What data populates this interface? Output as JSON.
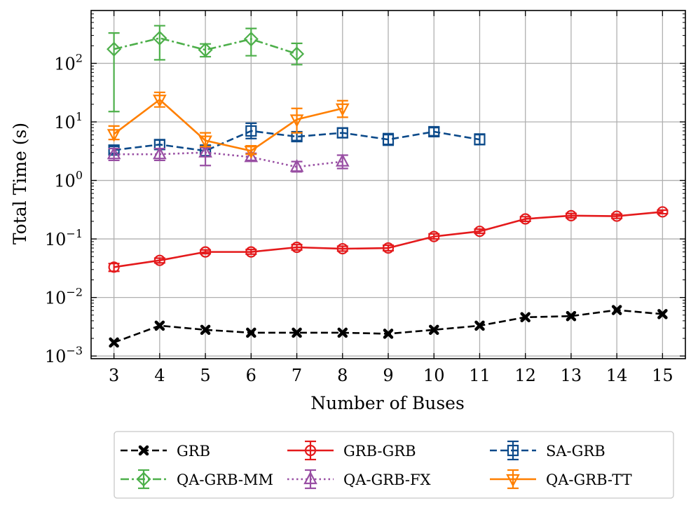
{
  "chart_data": {
    "type": "line",
    "xlabel": "Number of Buses",
    "ylabel": "Total Time (s)",
    "yscale": "log",
    "ylim": [
      0.0009,
      800
    ],
    "xlim": [
      2.5,
      15.5
    ],
    "grid": true,
    "legend_position": "bottom",
    "xticks": [
      {
        "value": 3,
        "label": "3"
      },
      {
        "value": 4,
        "label": "4"
      },
      {
        "value": 5,
        "label": "5"
      },
      {
        "value": 6,
        "label": "6"
      },
      {
        "value": 7,
        "label": "7"
      },
      {
        "value": 8,
        "label": "8"
      },
      {
        "value": 9,
        "label": "9"
      },
      {
        "value": 10,
        "label": "10"
      },
      {
        "value": 11,
        "label": "11"
      },
      {
        "value": 12,
        "label": "12"
      },
      {
        "value": 13,
        "label": "13"
      },
      {
        "value": 14,
        "label": "14"
      },
      {
        "value": 15,
        "label": "15"
      }
    ],
    "yticks": [
      {
        "value": 0.001,
        "mantissa": "10",
        "exp": "−3"
      },
      {
        "value": 0.01,
        "mantissa": "10",
        "exp": "−2"
      },
      {
        "value": 0.1,
        "mantissa": "10",
        "exp": "−1"
      },
      {
        "value": 1,
        "mantissa": "10",
        "exp": "0"
      },
      {
        "value": 10,
        "mantissa": "10",
        "exp": "1"
      },
      {
        "value": 100,
        "mantissa": "10",
        "exp": "2"
      }
    ],
    "series": [
      {
        "name": "GRB",
        "color": "#000000",
        "dash": "dashed",
        "marker": "x",
        "errorbars": false,
        "x": [
          3,
          4,
          5,
          6,
          7,
          8,
          9,
          10,
          11,
          12,
          13,
          14,
          15
        ],
        "y": [
          0.0017,
          0.0033,
          0.0028,
          0.0025,
          0.0025,
          0.0025,
          0.0024,
          0.0028,
          0.0033,
          0.0046,
          0.0048,
          0.0061,
          0.0052
        ]
      },
      {
        "name": "GRB-GRB",
        "color": "#e41a1c",
        "dash": "solid",
        "marker": "circle",
        "errorbars": true,
        "x": [
          3,
          4,
          5,
          6,
          7,
          8,
          9,
          10,
          11,
          12,
          13,
          14,
          15
        ],
        "y": [
          0.033,
          0.043,
          0.06,
          0.06,
          0.072,
          0.068,
          0.07,
          0.11,
          0.135,
          0.22,
          0.25,
          0.245,
          0.29
        ],
        "lo": [
          0.028,
          0.039,
          0.056,
          0.055,
          0.065,
          0.062,
          0.063,
          0.1,
          0.125,
          0.2,
          0.23,
          0.225,
          0.27
        ],
        "hi": [
          0.038,
          0.047,
          0.065,
          0.066,
          0.08,
          0.075,
          0.078,
          0.122,
          0.147,
          0.24,
          0.272,
          0.265,
          0.31
        ]
      },
      {
        "name": "SA-GRB",
        "color": "#0c4a8a",
        "dash": "dashed",
        "marker": "square",
        "errorbars": true,
        "x": [
          3,
          4,
          5,
          6,
          7,
          8,
          9,
          10,
          11
        ],
        "y": [
          3.3,
          4.1,
          3.2,
          7.0,
          5.6,
          6.5,
          5.0,
          6.8,
          5.0
        ],
        "lo": [
          2.9,
          3.5,
          2.6,
          5.2,
          4.8,
          5.4,
          4.0,
          5.8,
          4.1
        ],
        "hi": [
          3.8,
          4.9,
          4.0,
          9.5,
          6.6,
          7.8,
          6.3,
          8.0,
          6.2
        ]
      },
      {
        "name": "QA-GRB-MM",
        "color": "#4daf4a",
        "dash": "dashdot",
        "marker": "diamond",
        "errorbars": true,
        "x": [
          3,
          4,
          5,
          6,
          7
        ],
        "y": [
          175,
          270,
          170,
          260,
          145
        ],
        "lo": [
          15,
          115,
          130,
          135,
          95
        ],
        "hi": [
          330,
          440,
          215,
          395,
          220
        ]
      },
      {
        "name": "QA-GRB-FX",
        "color": "#984ea3",
        "dash": "dotted",
        "marker": "triangle-up",
        "errorbars": true,
        "x": [
          3,
          4,
          5,
          6,
          7,
          8
        ],
        "y": [
          2.8,
          2.8,
          3.0,
          2.5,
          1.7,
          2.1
        ],
        "lo": [
          2.2,
          2.2,
          1.8,
          2.2,
          1.4,
          1.6
        ],
        "hi": [
          3.5,
          3.5,
          3.6,
          2.9,
          2.1,
          2.7
        ]
      },
      {
        "name": "QA-GRB-TT",
        "color": "#ff7f00",
        "dash": "solid",
        "marker": "triangle-down",
        "errorbars": true,
        "x": [
          3,
          4,
          5,
          6,
          7,
          8
        ],
        "y": [
          6.2,
          24.0,
          4.8,
          3.2,
          11.0,
          17.0
        ],
        "lo": [
          5.0,
          18.0,
          3.8,
          2.8,
          6.5,
          12.0
        ],
        "hi": [
          8.5,
          32.0,
          6.5,
          3.9,
          17.0,
          23.0
        ]
      }
    ]
  }
}
